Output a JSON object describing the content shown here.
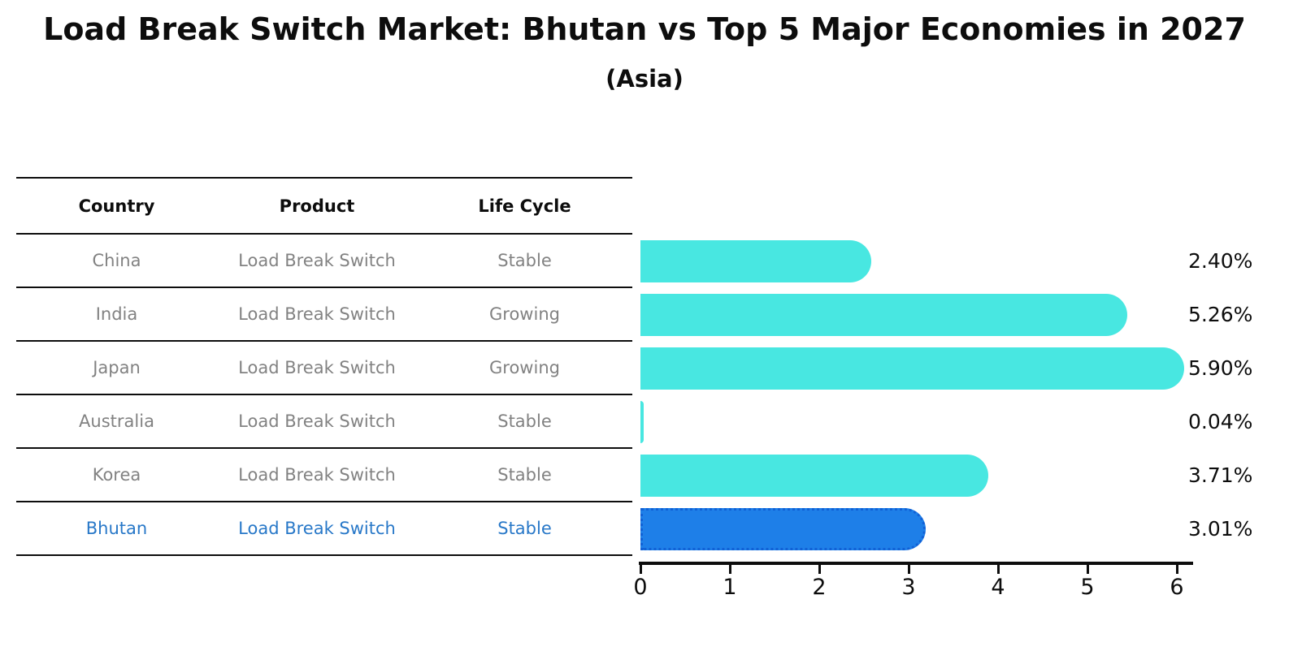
{
  "title": "Load Break Switch Market: Bhutan vs Top 5 Major Economies in 2027",
  "subtitle": "(Asia)",
  "table": {
    "headers": [
      "Country",
      "Product",
      "Life Cycle"
    ],
    "rows": [
      {
        "country": "China",
        "product": "Load Break Switch",
        "life_cycle": "Stable",
        "highlight": false
      },
      {
        "country": "India",
        "product": "Load Break Switch",
        "life_cycle": "Growing",
        "highlight": false
      },
      {
        "country": "Japan",
        "product": "Load Break Switch",
        "life_cycle": "Growing",
        "highlight": false
      },
      {
        "country": "Australia",
        "product": "Load Break Switch",
        "life_cycle": "Stable",
        "highlight": false
      },
      {
        "country": "Korea",
        "product": "Load Break Switch",
        "life_cycle": "Stable",
        "highlight": false
      },
      {
        "country": "Bhutan",
        "product": "Load Break Switch",
        "life_cycle": "Stable",
        "highlight": true
      }
    ]
  },
  "chart_data": {
    "type": "bar",
    "orientation": "horizontal",
    "title": "Load Break Switch Market: Bhutan vs Top 5 Major Economies in 2027",
    "subtitle": "(Asia)",
    "categories": [
      "China",
      "India",
      "Japan",
      "Australia",
      "Korea",
      "Bhutan"
    ],
    "values": [
      2.4,
      5.26,
      5.9,
      0.04,
      3.71,
      3.01
    ],
    "value_labels": [
      "2.40%",
      "5.26%",
      "5.90%",
      "0.04%",
      "3.71%",
      "3.01%"
    ],
    "xlim": [
      0,
      6
    ],
    "x_ticks": [
      0,
      1,
      2,
      3,
      4,
      5,
      6
    ],
    "grid": false,
    "legend": "none",
    "bar_color": "#48E7E1",
    "highlight_index": 5,
    "highlight_color": "#1E7FE8",
    "highlight_border_style": "dotted",
    "highlight_text_color": "#2878C8"
  },
  "colors": {
    "background": "#ffffff",
    "text": "#0d0d0d",
    "table_text": "#828282",
    "bar": "#48E7E1",
    "highlight_bar": "#1E7FE8",
    "highlight_border": "#1161D6",
    "highlight_text": "#2878C8"
  }
}
